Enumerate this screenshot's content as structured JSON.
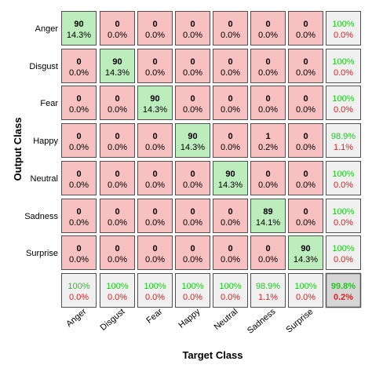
{
  "chart_data": {
    "type": "heatmap",
    "subtype": "confusion-matrix",
    "xlabel": "Target Class",
    "ylabel": "Output Class",
    "classes": [
      "Anger",
      "Disgust",
      "Fear",
      "Happy",
      "Neutral",
      "Sadness",
      "Surprise"
    ],
    "counts": [
      [
        90,
        0,
        0,
        0,
        0,
        0,
        0
      ],
      [
        0,
        90,
        0,
        0,
        0,
        0,
        0
      ],
      [
        0,
        0,
        90,
        0,
        0,
        0,
        0
      ],
      [
        0,
        0,
        0,
        90,
        0,
        1,
        0
      ],
      [
        0,
        0,
        0,
        0,
        90,
        0,
        0
      ],
      [
        0,
        0,
        0,
        0,
        0,
        89,
        0
      ],
      [
        0,
        0,
        0,
        0,
        0,
        0,
        90
      ]
    ],
    "cell_percent": [
      [
        "14.3%",
        "0.0%",
        "0.0%",
        "0.0%",
        "0.0%",
        "0.0%",
        "0.0%"
      ],
      [
        "0.0%",
        "14.3%",
        "0.0%",
        "0.0%",
        "0.0%",
        "0.0%",
        "0.0%"
      ],
      [
        "0.0%",
        "0.0%",
        "14.3%",
        "0.0%",
        "0.0%",
        "0.0%",
        "0.0%"
      ],
      [
        "0.0%",
        "0.0%",
        "0.0%",
        "14.3%",
        "0.0%",
        "0.2%",
        "0.0%"
      ],
      [
        "0.0%",
        "0.0%",
        "0.0%",
        "0.0%",
        "14.3%",
        "0.0%",
        "0.0%"
      ],
      [
        "0.0%",
        "0.0%",
        "0.0%",
        "0.0%",
        "0.0%",
        "14.1%",
        "0.0%"
      ],
      [
        "0.0%",
        "0.0%",
        "0.0%",
        "0.0%",
        "0.0%",
        "0.0%",
        "14.3%"
      ]
    ],
    "row_summary": [
      [
        "100%",
        "0.0%"
      ],
      [
        "100%",
        "0.0%"
      ],
      [
        "100%",
        "0.0%"
      ],
      [
        "98.9%",
        "1.1%"
      ],
      [
        "100%",
        "0.0%"
      ],
      [
        "100%",
        "0.0%"
      ],
      [
        "100%",
        "0.0%"
      ]
    ],
    "col_summary": [
      [
        "100%",
        "0.0%"
      ],
      [
        "100%",
        "0.0%"
      ],
      [
        "100%",
        "0.0%"
      ],
      [
        "100%",
        "0.0%"
      ],
      [
        "100%",
        "0.0%"
      ],
      [
        "98.9%",
        "1.1%"
      ],
      [
        "100%",
        "0.0%"
      ]
    ],
    "overall": [
      "99.8%",
      "0.2%"
    ],
    "colors": {
      "correct_fill": "#bdedbd",
      "incorrect_fill": "#f8c1c1",
      "summary_fill": "#f0f0f0",
      "overall_fill": "#d6d6d6",
      "good_text": "#1fc81f",
      "bad_text": "#e02020",
      "text": "#000000",
      "cell_border": "#505050"
    }
  }
}
